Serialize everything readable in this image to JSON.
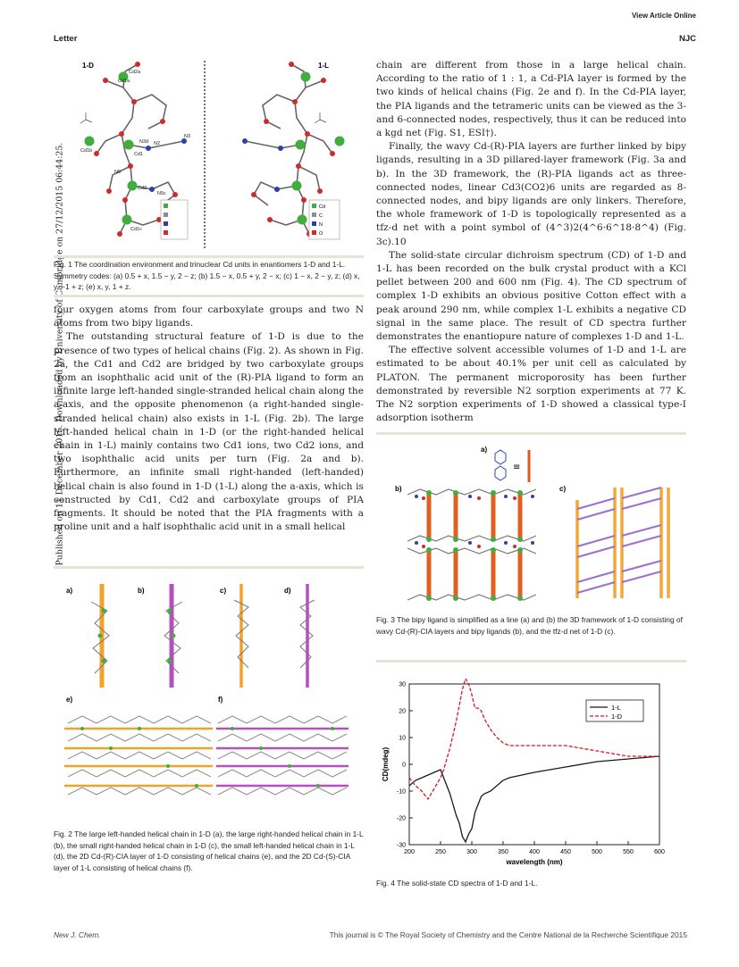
{
  "header": {
    "view_online": "View Article Online",
    "section": "Letter",
    "journal": "NJC"
  },
  "sidebar_note": "Published on 11 December 2015. Downloaded by University of Cambridge on 27/12/2015 06:44:25.",
  "fig1": {
    "label_left": "1-D",
    "label_right": "1-L",
    "atoms": [
      "Cd1a",
      "Cd2a",
      "Cd1",
      "Cd2",
      "Cd1b",
      "Cd1c",
      "N3d",
      "N3",
      "N5",
      "N5c",
      "N2"
    ],
    "legend": [
      "Cd",
      "C",
      "N",
      "O"
    ],
    "legend_colors": [
      "#3fae3f",
      "#8c8c8c",
      "#2f3fa8",
      "#d12a2a"
    ],
    "caption": "Fig. 1   The coordination environment and trinuclear Cd units in enantiomers 1-D and 1-L. Symmetry codes: (a) 0.5 + x, 1.5 − y, 2 − z; (b) 1.5 − x, 0.5 + y, 2 − x; (c) 1 − x, 2 − y, z; (d) x, y, −1 + z; (e) x, y, 1 + z."
  },
  "left_text": {
    "p1": "four oxygen atoms from four carboxylate groups and two N atoms from two bipy ligands.",
    "p2": "The outstanding structural feature of 1-D is due to the presence of two types of helical chains (Fig. 2). As shown in Fig. 2a, the Cd1 and Cd2 are bridged by two carboxylate groups from an isophthalic acid unit of the (R)-PIA ligand to form an infinite large left-handed single-stranded helical chain along the a-axis, and the opposite phenomenon (a right-handed single-stranded helical chain) also exists in 1-L (Fig. 2b). The large left-handed helical chain in 1-D (or the right-handed helical chain in 1-L) mainly contains two Cd1 ions, two Cd2 ions, and two isophthalic acid units per turn (Fig. 2a and b). Furthermore, an infinite small right-handed (left-handed) helical chain is also found in 1-D (1-L) along the a-axis, which is constructed by Cd1, Cd2 and carboxylate groups of PIA fragments. It should be noted that the PIA fragments with a proline unit and a half isophthalic acid unit in a small helical"
  },
  "right_text": {
    "p1": "chain are different from those in a large helical chain. According to the ratio of 1 : 1, a Cd-PIA layer is formed by the two kinds of helical chains (Fig. 2e and f). In the Cd-PIA layer, the PIA ligands and the tetrameric units can be viewed as the 3- and 6-connected nodes, respectively, thus it can be reduced into a kgd net (Fig. S1, ESI†).",
    "p2": "Finally, the wavy Cd-(R)-PIA layers are further linked by bipy ligands, resulting in a 3D pillared-layer framework (Fig. 3a and b). In the 3D framework, the (R)-PIA ligands act as three-connected nodes, linear Cd3(CO2)6 units are regarded as 8-connected nodes, and bipy ligands are only linkers. Therefore, the whole framework of 1-D is topologically represented as a tfz-d net with a point symbol of (4^3)2(4^6·6^18·8^4) (Fig. 3c).10",
    "p3": "The solid-state circular dichroism spectrum (CD) of 1-D and 1-L has been recorded on the bulk crystal product with a KCl pellet between 200 and 600 nm (Fig. 4). The CD spectrum of complex 1-D exhibits an obvious positive Cotton effect with a peak around 290 nm, while complex 1-L exhibits a negative CD signal in the same place. The result of CD spectra further demonstrates the enantiopure nature of complexes 1-D and 1-L.",
    "p4": "The effective solvent accessible volumes of 1-D and 1-L are estimated to be about 40.1% per unit cell as calculated by PLATON. The permanent microporosity has been further demonstrated by reversible N2 sorption experiments at 77 K. The N2 sorption experiments of 1-D showed a classical type-I adsorption isotherm"
  },
  "fig2": {
    "panels": [
      "a)",
      "b)",
      "c)",
      "d)",
      "e)",
      "f)"
    ],
    "colors": {
      "orange": "#f0a22a",
      "purple": "#b84fc0"
    },
    "caption": "Fig. 2   The large left-handed helical chain in 1-D (a), the large right-handed helical chain in 1-L (b), the small right-handed helical chain in 1-D (c), the small left-handed helical chain in 1-L (d), the 2D Cd-(R)-CIA layer of 1-D consisting of helical chains (e), and the 2D Cd-(S)-CIA layer of 1-L consisting of helical chains (f)."
  },
  "fig3": {
    "panels": [
      "a)",
      "b)",
      "c)"
    ],
    "caption": "Fig. 3   The bipy ligand is simplified as a line (a) and (b) the 3D framework of 1-D consisting of wavy Cd-(R)-CIA layers and bipy ligands (b), and the tfz-d net of 1-D (c)."
  },
  "fig4": {
    "caption": "Fig. 4   The solid-state CD spectra of 1-D and 1-L."
  },
  "chart_data": {
    "type": "line",
    "xlabel": "wavelength (nm)",
    "ylabel": "CD(mdeg)",
    "xlim": [
      200,
      600
    ],
    "ylim": [
      -30,
      30
    ],
    "xticks": [
      200,
      250,
      300,
      350,
      400,
      450,
      500,
      550,
      600
    ],
    "yticks": [
      -30,
      -20,
      -10,
      0,
      10,
      20,
      30
    ],
    "legend_position": "top-right",
    "series": [
      {
        "name": "1-L",
        "color": "#1a1a1a",
        "dash": "solid",
        "x": [
          200,
          210,
          220,
          230,
          240,
          250,
          255,
          260,
          265,
          270,
          275,
          280,
          285,
          290,
          295,
          300,
          305,
          310,
          315,
          320,
          330,
          340,
          350,
          360,
          380,
          400,
          450,
          500,
          550,
          600
        ],
        "y": [
          -8,
          -6,
          -5,
          -4,
          -3,
          -2,
          -5,
          -8,
          -11,
          -15,
          -19,
          -22,
          -27,
          -29,
          -26,
          -24,
          -18,
          -15,
          -12,
          -11,
          -10,
          -8,
          -6,
          -5,
          -4,
          -3,
          -1,
          1,
          2,
          3
        ]
      },
      {
        "name": "1-D",
        "color": "#e0141e",
        "dash": "dashed",
        "x": [
          200,
          210,
          220,
          230,
          240,
          250,
          255,
          260,
          265,
          270,
          275,
          280,
          285,
          290,
          295,
          300,
          305,
          310,
          315,
          320,
          330,
          340,
          350,
          360,
          380,
          400,
          450,
          500,
          550,
          600
        ],
        "y": [
          -5,
          -8,
          -10,
          -13,
          -9,
          -5,
          -2,
          2,
          6,
          11,
          16,
          22,
          28,
          32,
          30,
          26,
          21,
          21,
          20,
          17,
          13,
          10,
          8,
          7,
          7,
          7,
          7,
          5,
          3,
          3
        ]
      }
    ]
  },
  "footer": {
    "journal": "New J. Chem.",
    "copyright": "This journal is © The Royal Society of Chemistry and the Centre National de la Recherche Scientifique 2015"
  }
}
